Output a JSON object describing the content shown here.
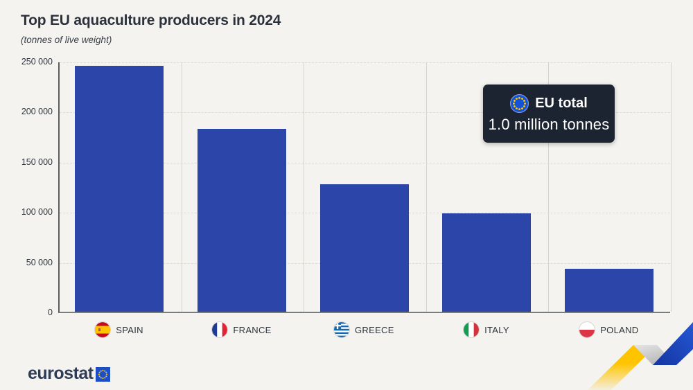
{
  "header": {
    "title": "Top EU aquaculture producers in 2024",
    "subtitle": "(tonnes of live weight)"
  },
  "callout": {
    "icon": "eu-flag-icon",
    "title": "EU total",
    "value": "1.0 million tonnes"
  },
  "footer": {
    "logo_text": "eurostat",
    "logo_icon": "eu-flag-icon"
  },
  "decoration": {
    "name": "trend-arrow-ribbon",
    "colors": {
      "yellow": "#ffc400",
      "gray": "#c3c3c3",
      "blue": "#1e4fc6"
    }
  },
  "colors": {
    "background": "#f4f3f0",
    "bar": "#2b46a8",
    "callout_bg": "#1b2430",
    "eu_flag_blue": "#1553d6",
    "star_yellow": "#ffcc00",
    "title_text": "#2b323c"
  },
  "chart_data": {
    "type": "bar",
    "title": "Top EU aquaculture producers in 2024",
    "subtitle": "(tonnes of live weight)",
    "unit": "tonnes of live weight",
    "categories": [
      "SPAIN",
      "FRANCE",
      "GREECE",
      "ITALY",
      "POLAND"
    ],
    "values": [
      245000,
      182000,
      127000,
      98000,
      43000
    ],
    "flag_icons": [
      "spain-flag-icon",
      "france-flag-icon",
      "greece-flag-icon",
      "italy-flag-icon",
      "poland-flag-icon"
    ],
    "flag_codes": [
      "es",
      "fr",
      "gr",
      "it",
      "pl"
    ],
    "bar_color": "#2b46a8",
    "ylim": [
      0,
      250000
    ],
    "yticks": [
      0,
      50000,
      100000,
      150000,
      200000,
      250000
    ],
    "ytick_labels": [
      "0",
      "50 000",
      "100 000",
      "150 000",
      "200 000",
      "250 000"
    ],
    "grid": "horizontal-dashed",
    "legend": "none",
    "annotation": {
      "label": "EU total",
      "value": "1.0 million tonnes"
    }
  }
}
